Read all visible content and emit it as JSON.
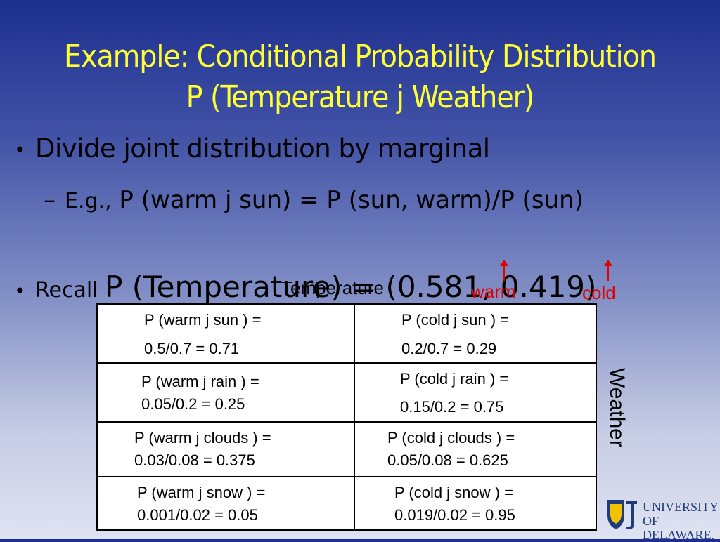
{
  "title": {
    "line1": "Example: Conditional Probability Distribution",
    "line2": "P  (Temperature   j Weather)"
  },
  "bullets": {
    "bullet1": "Divide joint distribution by marginal",
    "sub_prefix": "E.g.,",
    "sub_text": "P   (warm j sun) = P   (sun, warm)/P (sun)",
    "bullet2_prefix": "Recall",
    "bullet2_text": "P   (Temperature) = (0.581, 0.419)"
  },
  "overlay": {
    "temperature_label": "Temperature",
    "warm_label": "warm",
    "cold_label": "cold",
    "weather_label": "Weather"
  },
  "table": {
    "rows": [
      {
        "warm_line1": "P  (warm  j sun ) =",
        "warm_line2": "0.5/0.7 = 0.71",
        "cold_line1": "P  (cold  j sun ) =",
        "cold_line2": "0.2/0.7 = 0.29"
      },
      {
        "warm_line1": "P  (warm  j rain )  =",
        "warm_line2": "0.05/0.2 = 0.25",
        "cold_line1": "P  (cold  j rain ) =",
        "cold_line2": "0.15/0.2 = 0.75"
      },
      {
        "warm_line1": "P  (warm j clouds ) =",
        "warm_line2": "0.03/0.08 = 0.375",
        "cold_line1": "P  (cold  j clouds ) =",
        "cold_line2": "0.05/0.08 = 0.625"
      },
      {
        "warm_line1": "P  (warm  j snow ) =",
        "warm_line2": "0.001/0.02 = 0.05",
        "cold_line1": "P  (cold  j snow ) =",
        "cold_line2": "0.019/0.02 = 0.95"
      }
    ]
  },
  "logo": {
    "line1": "UNIVERSITY OF",
    "line2": "DELAWARE.",
    "icon": "shield-icon"
  },
  "colors": {
    "title": "#ffff33",
    "axis_labels": "#e00000",
    "logo": "#1f3b7a"
  }
}
